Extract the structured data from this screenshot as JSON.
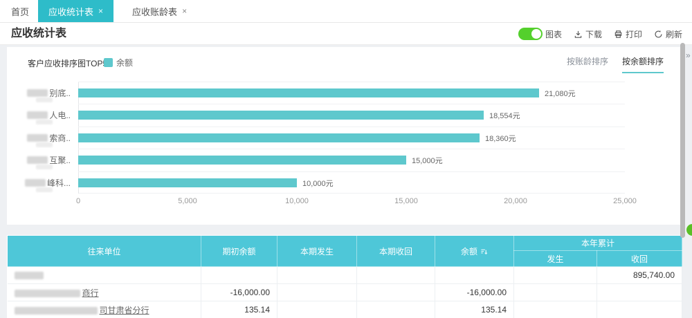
{
  "colors": {
    "accent_teal": "#2ebcc9",
    "table_header_teal": "#4ec7d8",
    "bar_teal": "#5ec8cd",
    "toggle_green": "#54d02c",
    "page_bg": "#eef0f3"
  },
  "tab_bar": {
    "tabs": [
      {
        "label": "首页",
        "active": false
      },
      {
        "label": "应收统计表",
        "close": "×",
        "active": true
      },
      {
        "label": "应收账龄表",
        "close": "×",
        "active": false
      }
    ]
  },
  "toolbar": {
    "page_title": "应收统计表",
    "chart_toggle_label": "图表",
    "chart_toggle_state": "on",
    "download_label": "下载",
    "print_label": "打印",
    "refresh_label": "刷新"
  },
  "chart_panel": {
    "title": "客户应收排序图TOP5",
    "legend_label": "余额",
    "sort_by_aging_label": "按账龄排序",
    "sort_by_balance_label": "按余额排序",
    "active_sort": "按余额排序",
    "collapse_glyph": "»"
  },
  "chart_data": {
    "type": "bar",
    "orientation": "horizontal",
    "title": "客户应收排序图TOP5",
    "series_name": "余额",
    "categories": [
      "别底..",
      "人电..",
      "索商..",
      "互聚..",
      "峰科..."
    ],
    "categories_redacted": true,
    "values": [
      21080,
      18554,
      18360,
      15000,
      10000
    ],
    "value_labels": [
      "21,080元",
      "18,554元",
      "18,360元",
      "15,000元",
      "10,000元"
    ],
    "xlim": [
      0,
      25000
    ],
    "xticks": [
      "0",
      "5,000",
      "10,000",
      "15,000",
      "20,000",
      "25,000"
    ],
    "grid": true,
    "legend_position": "top-left"
  },
  "table": {
    "headers": {
      "unit": "往来单位",
      "opening_balance": "期初余额",
      "current_occurred": "本期发生",
      "current_recovered": "本期收回",
      "balance": "余额",
      "ytd_group": "本年累计",
      "ytd_occurred": "发生",
      "ytd_recovered": "收回"
    },
    "rows": [
      {
        "unit_suffix": "",
        "unit_redacted": true,
        "opening_balance": "",
        "current_occurred": "",
        "current_recovered": "",
        "balance": "",
        "ytd_occurred": "",
        "ytd_recovered": "895,740.00"
      },
      {
        "unit_suffix": "商行",
        "unit_redacted": true,
        "opening_balance": "-16,000.00",
        "current_occurred": "",
        "current_recovered": "",
        "balance": "-16,000.00",
        "ytd_occurred": "",
        "ytd_recovered": ""
      },
      {
        "unit_suffix": "司甘肃省分行",
        "unit_redacted": true,
        "opening_balance": "135.14",
        "current_occurred": "",
        "current_recovered": "",
        "balance": "135.14",
        "ytd_occurred": "",
        "ytd_recovered": ""
      }
    ]
  }
}
